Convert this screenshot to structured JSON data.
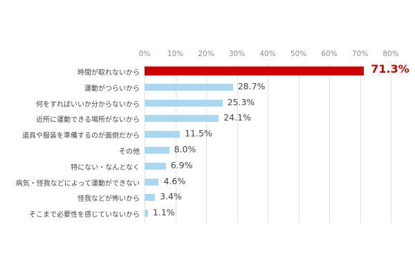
{
  "chart_data": {
    "type": "bar",
    "orientation": "horizontal",
    "title": "",
    "xlabel": "",
    "ylabel": "",
    "xlim": [
      0,
      80
    ],
    "x_ticks": [
      "0%",
      "10%",
      "20%",
      "30%",
      "40%",
      "50%",
      "60%",
      "70%",
      "80%"
    ],
    "grid": true,
    "legend": null,
    "categories": [
      "時間が取れないから",
      "運動がつらいから",
      "何をすればいいか分からないから",
      "近所に運動できる場所がないから",
      "道具や服装を準備するのが面倒だから",
      "その他",
      "特にない・なんとなく",
      "病気・怪我などによって運動ができない",
      "怪我などが怖いから",
      "そこまで必要性を感じていないから"
    ],
    "values": [
      71.3,
      28.7,
      25.3,
      24.1,
      11.5,
      8.0,
      6.9,
      4.6,
      3.4,
      1.1
    ],
    "value_labels": [
      "71.3%",
      "28.7%",
      "25.3%",
      "24.1%",
      "11.5%",
      "8.0%",
      "6.9%",
      "4.6%",
      "3.4%",
      "1.1%"
    ],
    "highlight_index": 0,
    "colors": {
      "highlight": "#cc0000",
      "default": "#a9d8f0",
      "grid": "#e2e2e2",
      "tick_text": "#8a8a8a"
    }
  }
}
